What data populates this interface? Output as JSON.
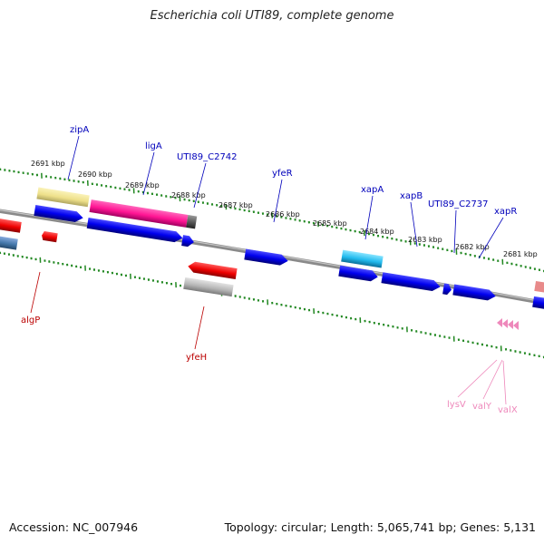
{
  "header": {
    "title": "Escherichia coli UTI89, complete genome"
  },
  "footer": {
    "accession": "Accession: NC_007946",
    "summary": "Topology: circular; Length: 5,065,741 bp; Genes: 5,131"
  },
  "kbp_labels": [
    "2691 kbp",
    "2690 kbp",
    "2689 kbp",
    "2688 kbp",
    "2687 kbp",
    "2686 kbp",
    "2685 kbp",
    "2684 kbp",
    "2683 kbp",
    "2682 kbp",
    "2681 kbp"
  ],
  "genes": {
    "zipA": "zipA",
    "ligA": "ligA",
    "UTI89_C2742": "UTI89_C2742",
    "yfeR": "yfeR",
    "xapA": "xapA",
    "xapB": "xapB",
    "UTI89_C2737": "UTI89_C2737",
    "xapR": "xapR",
    "algP": "algP",
    "yfeH": "yfeH",
    "lysV": "lysV",
    "valY": "valY",
    "valX": "valX"
  },
  "colors": {
    "protein_coding": "#0000ee",
    "highlight_magenta": "#ff1493",
    "pale_yellow": "#eee08a",
    "red": "#ee0000",
    "grey": "#b0b0b0",
    "cyan": "#22bbee",
    "steel_blue": "#4477aa",
    "trna_pink": "#ee88bb",
    "tick_green": "#228822",
    "label_blue": "#0000bb",
    "label_red": "#bb0000",
    "label_pink": "#ee88bb"
  }
}
